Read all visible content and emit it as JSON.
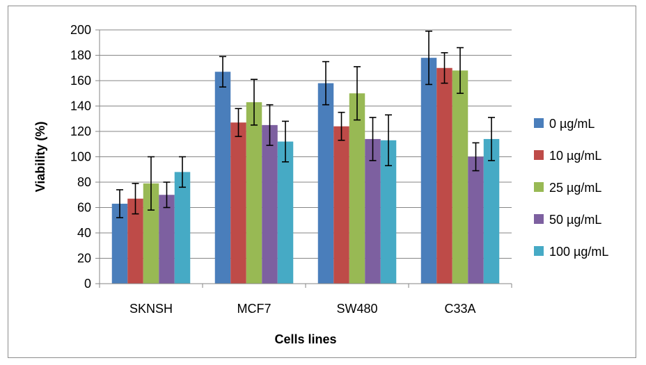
{
  "chart_data": {
    "type": "bar",
    "title": "",
    "xlabel": "Cells lines",
    "ylabel": "Viability (%)",
    "ylim": [
      0,
      200
    ],
    "yticks": [
      0,
      20,
      40,
      60,
      80,
      100,
      120,
      140,
      160,
      180,
      200
    ],
    "grid": "horizontal",
    "legend_position": "right",
    "error_bars": true,
    "categories": [
      "SKNSH",
      "MCF7",
      "SW480",
      "C33A"
    ],
    "series": [
      {
        "name": "0 µg/mL",
        "color": "#4a7ebb",
        "values": [
          63,
          167,
          158,
          178
        ],
        "errors": [
          11,
          12,
          17,
          21
        ]
      },
      {
        "name": "10 µg/mL",
        "color": "#be4b48",
        "values": [
          67,
          127,
          124,
          170
        ],
        "errors": [
          12,
          11,
          11,
          12
        ]
      },
      {
        "name": "25 µg/mL",
        "color": "#98b954",
        "values": [
          79,
          143,
          150,
          168
        ],
        "errors": [
          21,
          18,
          21,
          18
        ]
      },
      {
        "name": "50 µg/mL",
        "color": "#7d60a0",
        "values": [
          70,
          125,
          114,
          100
        ],
        "errors": [
          10,
          16,
          17,
          11
        ]
      },
      {
        "name": "100 µg/mL",
        "color": "#46aac5",
        "values": [
          88,
          112,
          113,
          114
        ],
        "errors": [
          12,
          16,
          20,
          17
        ]
      }
    ]
  }
}
